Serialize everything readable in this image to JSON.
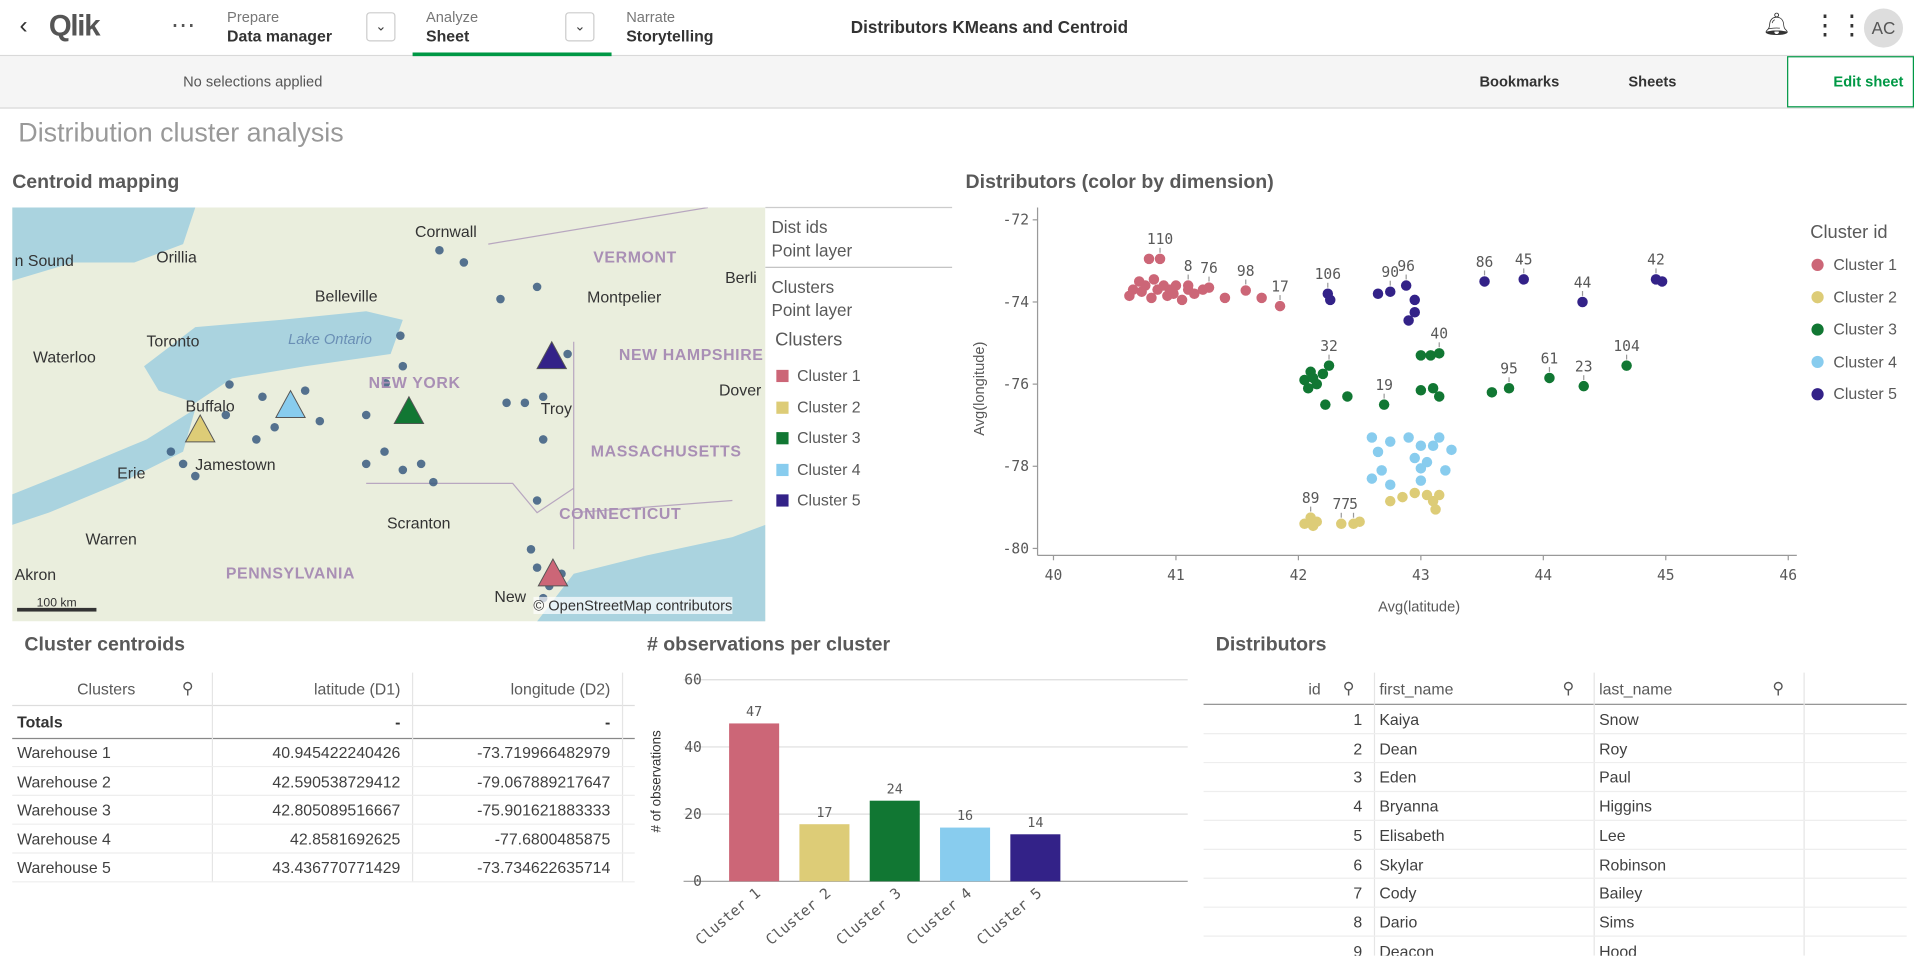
{
  "header": {
    "logo": "Qlik",
    "prepare_label": "Prepare",
    "prepare_value": "Data manager",
    "analyze_label": "Analyze",
    "analyze_value": "Sheet",
    "narrate_label": "Narrate",
    "narrate_value": "Storytelling",
    "app_title": "Distributors KMeans and Centroid",
    "avatar": "AC"
  },
  "toolbar": {
    "selections": "No selections applied",
    "bookmarks": "Bookmarks",
    "sheets": "Sheets",
    "edit": "Edit sheet"
  },
  "sheet_title": "Distribution cluster analysis",
  "map": {
    "title": "Centroid mapping",
    "places": [
      "n Sound",
      "Orillia",
      "Cornwall",
      "VERMONT",
      "Berli",
      "Belleville",
      "Montpelier",
      "Toronto",
      "Lake Ontario",
      "Waterloo",
      "NEW HAMPSHIRE",
      "NEW YORK",
      "Buffalo",
      "Troy",
      "Dover",
      "MASSACHUSETTS",
      "Jamestown",
      "Erie",
      "CONNECTICUT",
      "Scranton",
      "Warren",
      "PENNSYLVANIA",
      "Akron",
      "New"
    ],
    "layers": [
      {
        "name": "Dist ids",
        "kind": "Point layer"
      },
      {
        "name": "Clusters",
        "kind": "Point layer"
      }
    ],
    "legend_title": "Clusters",
    "legend": [
      "Cluster 1",
      "Cluster 2",
      "Cluster 3",
      "Cluster 4",
      "Cluster 5"
    ],
    "legend_colors": [
      "#cc6677",
      "#ddcc77",
      "#117733",
      "#88ccee",
      "#332288"
    ],
    "scale": "100 km",
    "attribution": "© OpenStreetMap contributors"
  },
  "chart_data": [
    {
      "type": "scatter",
      "title": "Distributors (color by dimension)",
      "x_label": "Avg(latitude)",
      "y_label": "Avg(longitude)",
      "legend_title": "Cluster id",
      "xlim": [
        39.87,
        46.07
      ],
      "xticks": [
        40,
        41,
        42,
        43,
        44,
        45,
        46
      ],
      "ylim": [
        -80.17,
        -71.7
      ],
      "yticks": [
        -80,
        -78,
        -76,
        -74,
        -72
      ],
      "series": [
        {
          "name": "Cluster 1",
          "color": "#cc6677",
          "x": [
            40.62,
            40.65,
            40.7,
            40.72,
            40.75,
            40.78,
            40.8,
            40.82,
            40.85,
            40.87,
            40.9,
            40.93,
            40.95,
            40.98,
            41.0,
            41.05,
            41.1,
            41.15,
            41.1,
            41.22,
            41.27,
            41.4,
            41.57,
            41.7,
            41.85
          ],
          "y": [
            -73.85,
            -73.7,
            -73.5,
            -73.75,
            -73.6,
            -72.95,
            -73.9,
            -73.45,
            -73.7,
            -72.95,
            -73.6,
            -73.85,
            -73.7,
            -73.8,
            -73.6,
            -73.95,
            -73.7,
            -73.8,
            -73.6,
            -73.7,
            -73.65,
            -73.9,
            -73.72,
            -73.9,
            -74.1
          ],
          "labels": [
            null,
            null,
            null,
            null,
            null,
            null,
            null,
            null,
            null,
            "110",
            null,
            null,
            null,
            null,
            null,
            null,
            null,
            null,
            "8",
            null,
            "76",
            null,
            "98",
            null,
            "17"
          ]
        },
        {
          "name": "Cluster 2",
          "color": "#ddcc77",
          "x": [
            42.05,
            42.1,
            42.12,
            42.15,
            42.35,
            42.45,
            42.5,
            42.75,
            42.95,
            43.05,
            43.1,
            43.15,
            43.12,
            42.85
          ],
          "y": [
            -79.4,
            -79.25,
            -79.45,
            -79.35,
            -79.4,
            -79.4,
            -79.35,
            -78.85,
            -78.65,
            -78.7,
            -78.85,
            -78.7,
            -79.05,
            -78.75
          ],
          "labels": [
            null,
            "89",
            null,
            null,
            "77",
            "5",
            null,
            null,
            null,
            null,
            null,
            null,
            null,
            null
          ]
        },
        {
          "name": "Cluster 3",
          "color": "#117733",
          "x": [
            42.05,
            42.1,
            42.12,
            42.15,
            42.08,
            42.2,
            42.25,
            42.22,
            42.4,
            42.7,
            43.0,
            43.1,
            43.15,
            43.0,
            43.08,
            43.15,
            43.58,
            43.72,
            44.05,
            44.33,
            44.68
          ],
          "y": [
            -75.9,
            -75.7,
            -75.85,
            -76.0,
            -76.1,
            -75.75,
            -75.55,
            -76.5,
            -76.3,
            -76.5,
            -76.15,
            -76.1,
            -76.3,
            -75.3,
            -75.3,
            -75.25,
            -76.2,
            -76.1,
            -75.85,
            -76.05,
            -75.55
          ],
          "labels": [
            null,
            null,
            null,
            null,
            null,
            null,
            "32",
            null,
            null,
            "19",
            null,
            null,
            null,
            null,
            null,
            "40",
            null,
            "95",
            "61",
            "23",
            "104"
          ]
        },
        {
          "name": "Cluster 4",
          "color": "#88ccee",
          "x": [
            42.6,
            42.65,
            42.68,
            42.75,
            42.6,
            42.9,
            42.95,
            43.0,
            43.05,
            43.1,
            43.2,
            43.25,
            43.0,
            42.75,
            43.15,
            43.0
          ],
          "y": [
            -77.3,
            -77.65,
            -78.1,
            -77.4,
            -78.3,
            -77.3,
            -77.8,
            -77.5,
            -77.9,
            -77.5,
            -78.1,
            -77.6,
            -78.35,
            -78.45,
            -77.3,
            -78.05
          ],
          "labels": [
            null,
            null,
            null,
            null,
            null,
            null,
            null,
            null,
            null,
            null,
            null,
            null,
            null,
            null,
            null,
            null
          ]
        },
        {
          "name": "Cluster 5",
          "color": "#332288",
          "x": [
            42.24,
            42.26,
            42.65,
            42.75,
            42.88,
            42.95,
            42.9,
            42.95,
            43.52,
            43.84,
            44.32,
            44.92,
            44.97
          ],
          "y": [
            -73.8,
            -73.95,
            -73.8,
            -73.75,
            -73.6,
            -73.95,
            -74.45,
            -74.25,
            -73.5,
            -73.45,
            -74.0,
            -73.45,
            -73.5
          ],
          "labels": [
            "106",
            null,
            null,
            "90",
            "96",
            null,
            null,
            null,
            "86",
            "45",
            "44",
            "42",
            null
          ]
        }
      ]
    },
    {
      "type": "bar",
      "title": "# observations per cluster",
      "y_label": "# of observations",
      "categories": [
        "Cluster 1",
        "Cluster 2",
        "Cluster 3",
        "Cluster 4",
        "Cluster 5"
      ],
      "values": [
        47,
        17,
        24,
        16,
        14
      ],
      "colors": [
        "#cc6677",
        "#ddcc77",
        "#117733",
        "#88ccee",
        "#332288"
      ],
      "ylim": [
        0,
        62.5
      ],
      "yticks": [
        0,
        20,
        40,
        60
      ],
      "grid": true
    }
  ],
  "centroid_table": {
    "title": "Cluster centroids",
    "columns": [
      "Clusters",
      "latitude (D1)",
      "longitude (D2)"
    ],
    "totals": [
      "Totals",
      "-",
      "-"
    ],
    "rows": [
      [
        "Warehouse 1",
        "40.945422240426",
        "-73.719966482979"
      ],
      [
        "Warehouse 2",
        "42.590538729412",
        "-79.067889217647"
      ],
      [
        "Warehouse 3",
        "42.805089516667",
        "-75.901621883333"
      ],
      [
        "Warehouse 4",
        "42.8581692625",
        "-77.6800485875"
      ],
      [
        "Warehouse 5",
        "43.436770771429",
        "-73.734622635714"
      ]
    ]
  },
  "distributors_table": {
    "title": "Distributors",
    "columns": [
      "id",
      "first_name",
      "last_name"
    ],
    "rows": [
      [
        1,
        "Kaiya",
        "Snow"
      ],
      [
        2,
        "Dean",
        "Roy"
      ],
      [
        3,
        "Eden",
        "Paul"
      ],
      [
        4,
        "Bryanna",
        "Higgins"
      ],
      [
        5,
        "Elisabeth",
        "Lee"
      ],
      [
        6,
        "Skylar",
        "Robinson"
      ],
      [
        7,
        "Cody",
        "Bailey"
      ],
      [
        8,
        "Dario",
        "Sims"
      ],
      [
        9,
        "Deacon",
        "Hood"
      ]
    ]
  }
}
